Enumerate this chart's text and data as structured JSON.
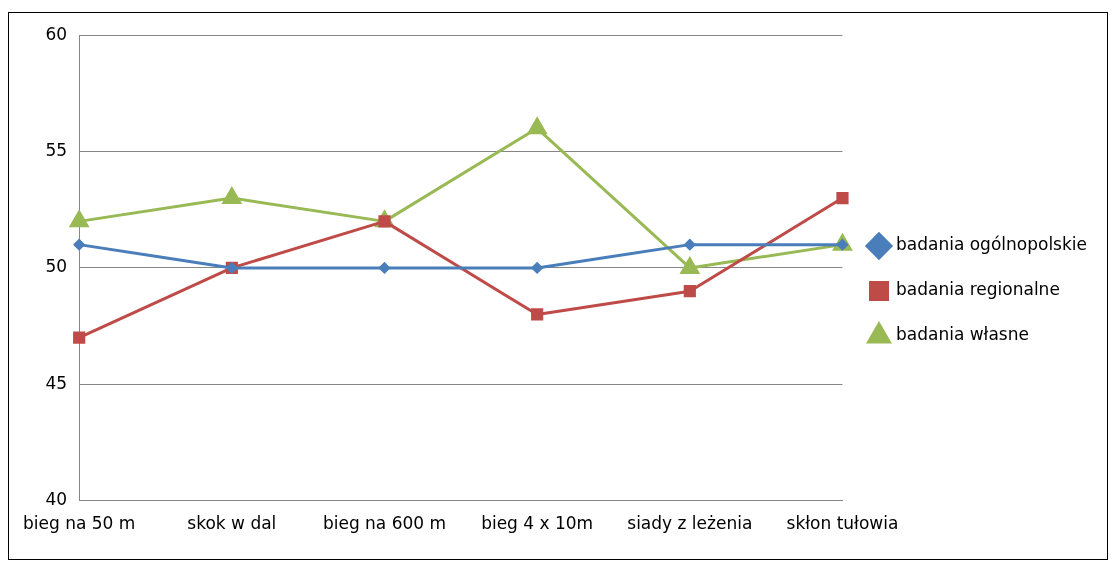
{
  "chart_data": {
    "type": "line",
    "categories": [
      "bieg na 50 m",
      "skok w dal",
      "bieg na 600 m",
      "bieg 4 x 10m",
      "siady z leżenia",
      "skłon tułowia"
    ],
    "series": [
      {
        "name": "badania ogólnopolskie",
        "color": "#4a7ebb",
        "marker": "diamond",
        "values": [
          51,
          50,
          50,
          50,
          51,
          51
        ]
      },
      {
        "name": "badania regionalne",
        "color": "#be4b48",
        "marker": "square",
        "values": [
          47,
          50,
          52,
          48,
          49,
          53
        ]
      },
      {
        "name": "badania własne",
        "color": "#98b954",
        "marker": "triangle",
        "values": [
          52,
          53,
          52,
          56,
          50,
          51
        ]
      }
    ],
    "ylim": [
      40,
      60
    ],
    "yticks": [
      40,
      45,
      50,
      55,
      60
    ],
    "grid": "y",
    "legend": "right",
    "line_style": "solid"
  }
}
